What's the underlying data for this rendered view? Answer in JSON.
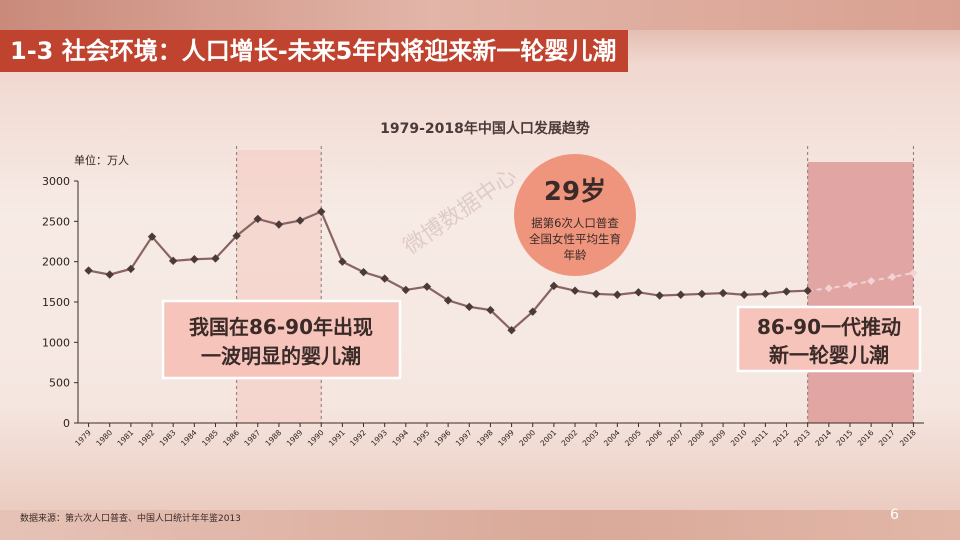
{
  "slide": {
    "title": "1-3 社会环境：人口增长-未来5年内将迎来新一轮婴儿潮",
    "source": "数据来源：第六次人口普查、中国人口统计年年鉴2013",
    "page_number": "6",
    "watermark": "微博数据中心"
  },
  "callouts": {
    "circle_big": "29岁",
    "circle_lines": [
      "据第6次人口普查",
      "全国女性平均生育",
      "年龄"
    ],
    "left_box": [
      "我国在86-90年出现",
      "一波明显的婴儿潮"
    ],
    "right_box": [
      "86-90一代推动",
      "新一轮婴儿潮"
    ]
  },
  "colors": {
    "title_bg": "#c0432f",
    "line": "#8a6560",
    "marker": "#4a3a38",
    "forecast": "#f2d2d4",
    "highlight_left": "#f4c9c0",
    "highlight_right": "#dd9a98",
    "circle": "#f0957d"
  },
  "chart_data": {
    "type": "line",
    "title": "1979-2018年中国人口发展趋势",
    "ylabel": "单位：万人",
    "xlabel": "",
    "ylim": [
      0,
      3000
    ],
    "yticks": [
      "0",
      "500",
      "1000",
      "1500",
      "2000",
      "2500",
      "3000"
    ],
    "grid": false,
    "categories": [
      "1979",
      "1980",
      "1981",
      "1982",
      "1983",
      "1984",
      "1985",
      "1986",
      "1987",
      "1988",
      "1989",
      "1990",
      "1991",
      "1992",
      "1993",
      "1994",
      "1995",
      "1996",
      "1997",
      "1998",
      "1999",
      "2000",
      "2001",
      "2002",
      "2003",
      "2004",
      "2005",
      "2006",
      "2007",
      "2008",
      "2009",
      "2010",
      "2011",
      "2012",
      "2013",
      "2014",
      "2015",
      "2016",
      "2017",
      "2018"
    ],
    "series": [
      {
        "values": [
          1890,
          1840,
          1910,
          2310,
          2010,
          2030,
          2040,
          2320,
          2530,
          2460,
          2510,
          2620,
          2000,
          1870,
          1790,
          1650,
          1690,
          1520,
          1440,
          1400,
          1150,
          1380,
          1700,
          1640,
          1600,
          1590,
          1620,
          1580,
          1590,
          1600,
          1610,
          1590,
          1600,
          1630,
          1640,
          null,
          null,
          null,
          null,
          null
        ]
      },
      {
        "values": [
          null,
          null,
          null,
          null,
          null,
          null,
          null,
          null,
          null,
          null,
          null,
          null,
          null,
          null,
          null,
          null,
          null,
          null,
          null,
          null,
          null,
          null,
          null,
          null,
          null,
          null,
          null,
          null,
          null,
          null,
          null,
          null,
          null,
          null,
          1640,
          1670,
          1710,
          1760,
          1810,
          1860
        ]
      }
    ]
  }
}
